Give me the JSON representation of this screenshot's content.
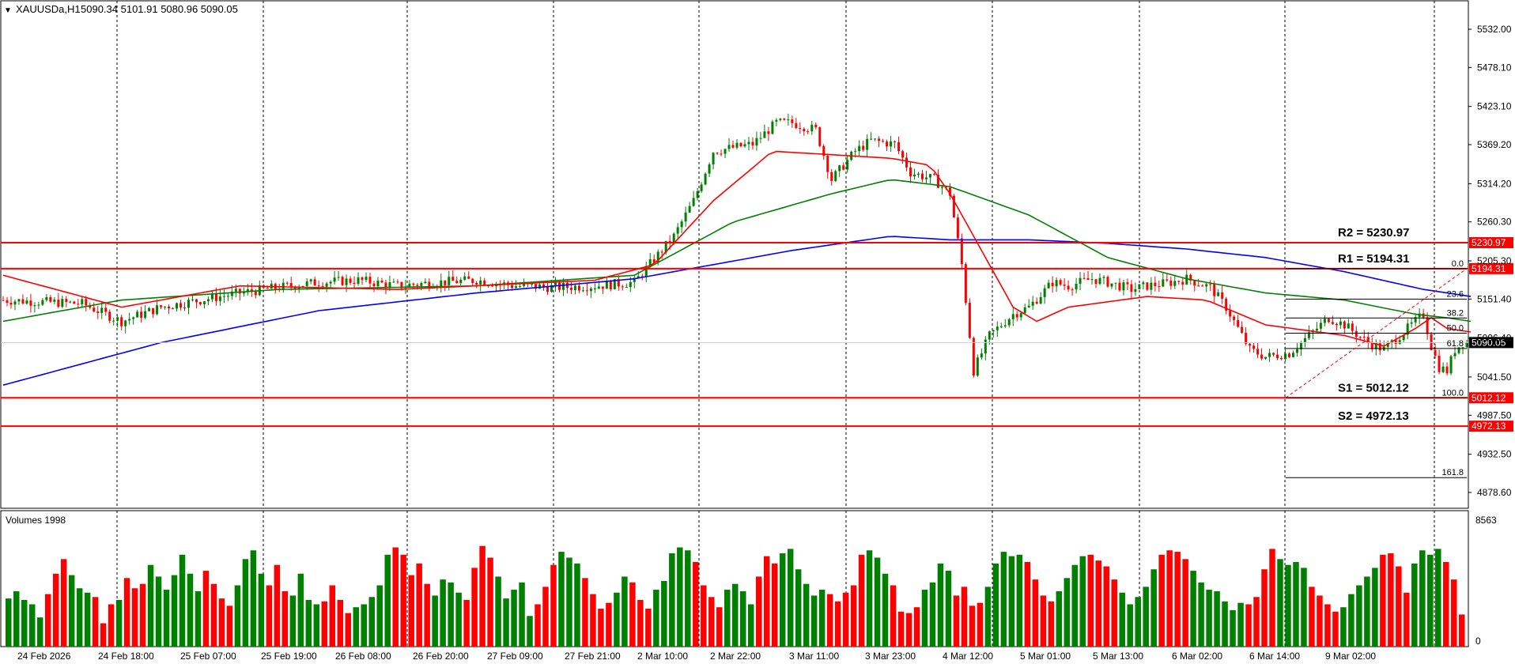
{
  "header": {
    "symbol": "XAUUSDa,H1",
    "ohlc": "5090.34 5101.91 5080.96 5090.05"
  },
  "colors": {
    "bull": "#008000",
    "bear": "#ff0000",
    "ma_fast": "#ff0000",
    "ma_mid": "#008000",
    "ma_slow": "#0000ff",
    "level_line": "#ff0000",
    "fib_line": "#000000"
  },
  "chart_data": {
    "type": "candlestick",
    "instrument": "XAUUSDa",
    "timeframe": "H1",
    "y_axis_ticks": [
      "5532.00",
      "5478.10",
      "5423.10",
      "5369.20",
      "5314.20",
      "5260.30",
      "5205.30",
      "5151.40",
      "5096.40",
      "5041.50",
      "4987.50",
      "4932.50",
      "4878.60"
    ],
    "y_tick_values": [
      5532.0,
      5478.1,
      5423.1,
      5369.2,
      5314.2,
      5260.3,
      5205.3,
      5151.4,
      5096.4,
      5041.5,
      4987.5,
      4932.5,
      4878.6
    ],
    "ylim": [
      4860,
      5560
    ],
    "x_axis_labels": [
      "24 Feb 2026",
      "24 Feb 18:00",
      "25 Feb 07:00",
      "25 Feb 19:00",
      "26 Feb 08:00",
      "26 Feb 20:00",
      "27 Feb 09:00",
      "27 Feb 21:00",
      "2 Mar 10:00",
      "2 Mar 22:00",
      "3 Mar 11:00",
      "3 Mar 23:00",
      "4 Mar 12:00",
      "5 Mar 01:00",
      "5 Mar 13:00",
      "6 Mar 02:00",
      "6 Mar 14:00",
      "9 Mar 02:00"
    ],
    "levels": [
      {
        "label": "R2 = 5230.97",
        "value": 5230.97,
        "tag": "5230.97"
      },
      {
        "label": "R1 = 5194.31",
        "value": 5194.31,
        "tag": "5194.31"
      },
      {
        "label": "S1 = 5012.12",
        "value": 5012.12,
        "tag": "5012.12"
      },
      {
        "label": "S2 = 4972.13",
        "value": 4972.13,
        "tag": "4972.13"
      }
    ],
    "current_price": "5090.05",
    "fibonacci": {
      "high": 5194.31,
      "low": 5012.12,
      "levels": [
        {
          "label": "0.0",
          "ratio": 0.0
        },
        {
          "label": "23.6",
          "ratio": 0.236
        },
        {
          "label": "38.2",
          "ratio": 0.382
        },
        {
          "label": "50.0",
          "ratio": 0.5
        },
        {
          "label": "61.8",
          "ratio": 0.618
        },
        {
          "label": "100.0",
          "ratio": 1.0
        },
        {
          "label": "161.8",
          "ratio": 1.618
        }
      ]
    },
    "price_path": [
      [
        0,
        5150
      ],
      [
        20,
        5145
      ],
      [
        30,
        5120
      ],
      [
        40,
        5140
      ],
      [
        50,
        5150
      ],
      [
        60,
        5160
      ],
      [
        70,
        5168
      ],
      [
        80,
        5175
      ],
      [
        90,
        5178
      ],
      [
        100,
        5170
      ],
      [
        110,
        5175
      ],
      [
        120,
        5178
      ],
      [
        130,
        5170
      ],
      [
        140,
        5168
      ],
      [
        150,
        5170
      ],
      [
        160,
        5175
      ],
      [
        170,
        5240
      ],
      [
        175,
        5290
      ],
      [
        180,
        5360
      ],
      [
        190,
        5370
      ],
      [
        196,
        5400
      ],
      [
        200,
        5400
      ],
      [
        206,
        5390
      ],
      [
        210,
        5320
      ],
      [
        216,
        5360
      ],
      [
        220,
        5375
      ],
      [
        226,
        5370
      ],
      [
        230,
        5330
      ],
      [
        236,
        5320
      ],
      [
        240,
        5300
      ],
      [
        243,
        5200
      ],
      [
        246,
        5050
      ],
      [
        250,
        5100
      ],
      [
        256,
        5130
      ],
      [
        260,
        5140
      ],
      [
        266,
        5175
      ],
      [
        270,
        5170
      ],
      [
        276,
        5180
      ],
      [
        280,
        5175
      ],
      [
        286,
        5165
      ],
      [
        290,
        5170
      ],
      [
        296,
        5175
      ],
      [
        300,
        5180
      ],
      [
        306,
        5168
      ],
      [
        310,
        5140
      ],
      [
        316,
        5080
      ],
      [
        320,
        5070
      ],
      [
        326,
        5075
      ],
      [
        330,
        5095
      ],
      [
        336,
        5125
      ],
      [
        340,
        5115
      ],
      [
        346,
        5090
      ],
      [
        350,
        5080
      ],
      [
        356,
        5110
      ],
      [
        360,
        5130
      ],
      [
        362,
        5085
      ],
      [
        364,
        5055
      ],
      [
        366,
        5050
      ],
      [
        368,
        5080
      ],
      [
        370,
        5090
      ],
      [
        372,
        5090
      ]
    ],
    "ma_fast": [
      [
        0,
        5185
      ],
      [
        30,
        5140
      ],
      [
        60,
        5170
      ],
      [
        100,
        5165
      ],
      [
        150,
        5178
      ],
      [
        165,
        5200
      ],
      [
        180,
        5290
      ],
      [
        195,
        5360
      ],
      [
        210,
        5355
      ],
      [
        225,
        5350
      ],
      [
        235,
        5340
      ],
      [
        240,
        5300
      ],
      [
        248,
        5220
      ],
      [
        256,
        5140
      ],
      [
        262,
        5120
      ],
      [
        270,
        5140
      ],
      [
        290,
        5155
      ],
      [
        305,
        5150
      ],
      [
        320,
        5115
      ],
      [
        340,
        5100
      ],
      [
        350,
        5085
      ],
      [
        358,
        5110
      ],
      [
        362,
        5125
      ],
      [
        366,
        5110
      ],
      [
        372,
        5105
      ]
    ],
    "ma_mid": [
      [
        0,
        5120
      ],
      [
        30,
        5150
      ],
      [
        70,
        5165
      ],
      [
        120,
        5170
      ],
      [
        160,
        5185
      ],
      [
        185,
        5260
      ],
      [
        210,
        5300
      ],
      [
        225,
        5320
      ],
      [
        240,
        5310
      ],
      [
        260,
        5270
      ],
      [
        280,
        5210
      ],
      [
        300,
        5180
      ],
      [
        320,
        5160
      ],
      [
        340,
        5150
      ],
      [
        358,
        5130
      ],
      [
        366,
        5125
      ],
      [
        372,
        5120
      ]
    ],
    "ma_slow": [
      [
        0,
        5030
      ],
      [
        40,
        5090
      ],
      [
        80,
        5135
      ],
      [
        120,
        5160
      ],
      [
        160,
        5180
      ],
      [
        200,
        5220
      ],
      [
        225,
        5240
      ],
      [
        240,
        5235
      ],
      [
        260,
        5235
      ],
      [
        280,
        5230
      ],
      [
        300,
        5222
      ],
      [
        320,
        5210
      ],
      [
        340,
        5190
      ],
      [
        360,
        5165
      ],
      [
        372,
        5155
      ]
    ],
    "volume": {
      "label": "Volumes 1998",
      "max_tick": "8563",
      "min_tick": "0",
      "max_value": 8563,
      "approx_values": [
        3300,
        3800,
        3200,
        2900,
        2000,
        3600,
        5000,
        6000,
        4900,
        4000,
        3700,
        3400,
        1600,
        2900,
        3200,
        4700,
        4000,
        4300,
        5600,
        4800,
        3900,
        4900,
        6300,
        5000,
        3800,
        5200,
        4300,
        3300,
        2800,
        4200,
        6000,
        6600,
        5000,
        4200,
        5600,
        3800,
        3500,
        5000,
        3200,
        2900,
        3100,
        4200,
        3200,
        2300,
        2700,
        2900,
        3400,
        4200,
        6300,
        6800,
        6300,
        4900,
        5700,
        4300,
        3500,
        4600,
        4400,
        3700,
        3200,
        5400,
        6900,
        6100,
        4800,
        3300,
        3900,
        4400,
        2100,
        2900,
        4100,
        5600,
        6500,
        6100,
        5700,
        4700,
        3600,
        2600,
        3000,
        3700,
        4800,
        4400,
        3200,
        2600,
        3900,
        4500,
        6400,
        6800,
        6600,
        5800,
        4200,
        3400,
        2700,
        3900,
        4300,
        3800,
        2900,
        4800,
        6200,
        5700,
        6400,
        6700,
        5300,
        4300,
        3500,
        3900,
        3600,
        3100,
        3700,
        4200,
        6300,
        6600,
        6100,
        5000,
        4200,
        2400,
        2300,
        2700,
        3900,
        4400,
        5700,
        5200,
        3500,
        4100,
        2800,
        3000,
        4100,
        5700,
        6500,
        6200,
        6300,
        5800,
        4600,
        3500,
        3100,
        3800,
        4700,
        5600,
        6200,
        6300,
        5900,
        5500,
        4600,
        3700,
        2900,
        3400,
        4100,
        5300,
        6300,
        6600,
        6500,
        6000,
        5200,
        4400,
        3900,
        3800,
        3100,
        2500,
        3000,
        2900,
        3400,
        5300,
        6700,
        6000,
        5600,
        5800,
        5400,
        4100,
        3500,
        2900,
        2400,
        2700,
        3600,
        4200,
        4800,
        5400,
        6300,
        6400,
        5500,
        3700,
        5700,
        6600,
        6300,
        6700,
        5800,
        4600,
        2200
      ],
      "pattern": "gggggrrrgggrrrgrrrgggggggrrrrggggrrrggggrrrrgggggrrrrrggggrrrrgggggrrrgggrrrrggrrrgggggrrrrggggrrrggggggrrrrrgggrrrrggggrrrrgggggrrrrggggrrrrgggggrrrrgggggggrrrrggggrrrrgggggrrrrggggrrrrggggrrgggrrrr"
    }
  }
}
